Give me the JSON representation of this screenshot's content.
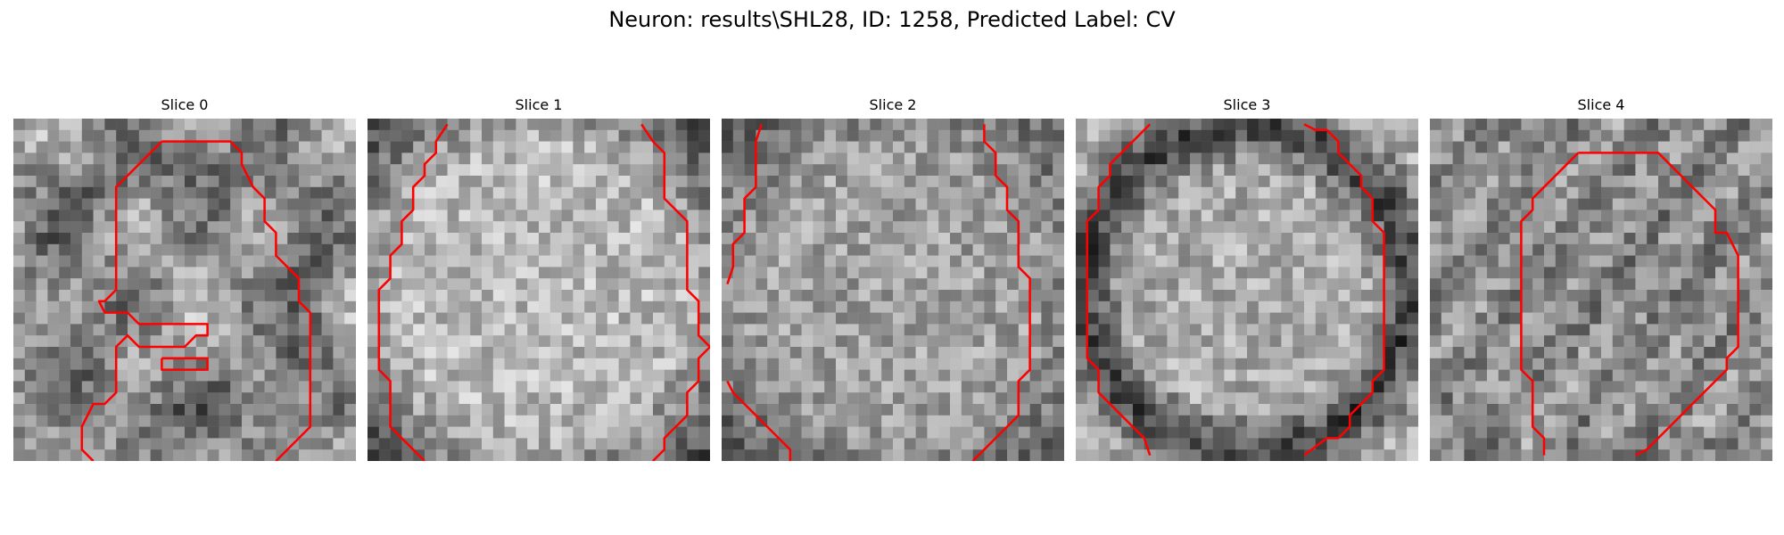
{
  "figure": {
    "title": "Neuron: results\\SHL28, ID: 1258, Predicted Label: CV",
    "contour_color": "#ff0000"
  },
  "slices": [
    {
      "title": "Slice 0",
      "seed": 11,
      "tone": "center-light"
    },
    {
      "title": "Slice 1",
      "seed": 23,
      "tone": "light"
    },
    {
      "title": "Slice 2",
      "seed": 37,
      "tone": "medium"
    },
    {
      "title": "Slice 3",
      "seed": 51,
      "tone": "ring-dark"
    },
    {
      "title": "Slice 4",
      "seed": 67,
      "tone": "mottled"
    }
  ]
}
